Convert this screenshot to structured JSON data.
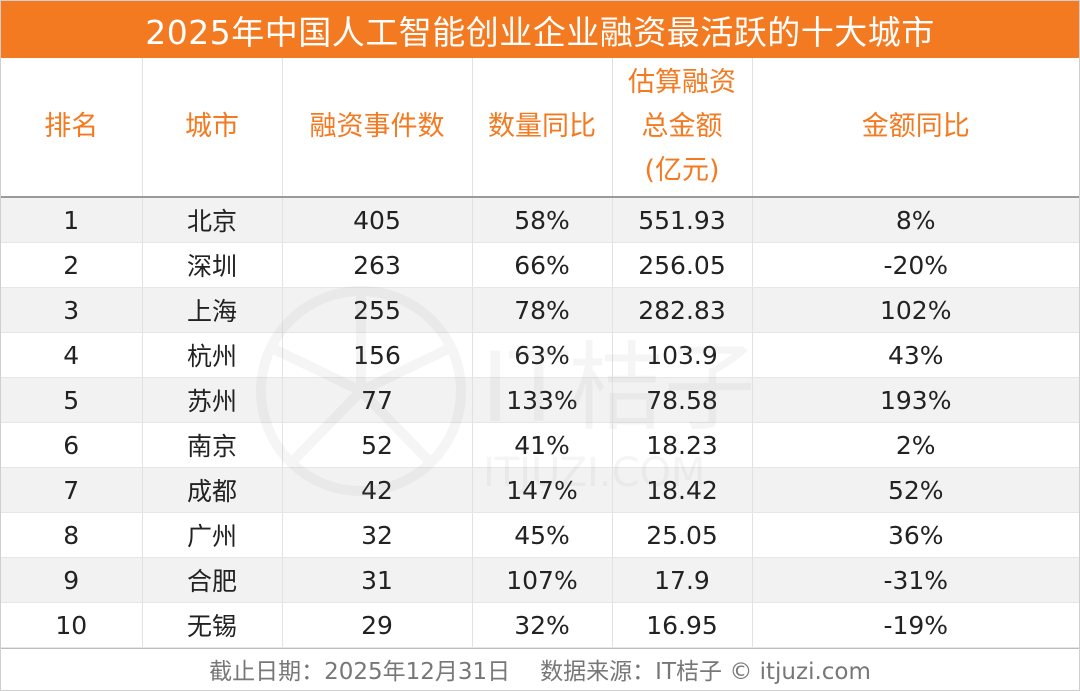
{
  "title": "2025年中国人工智能创业企业融资最活跃的十大城市",
  "headers": {
    "rank": "排名",
    "city": "城市",
    "events": "融资事件数",
    "count_yoy": "数量同比",
    "amount_line1": "估算融资",
    "amount_line2": "总金额",
    "amount_line3": "(亿元)",
    "amount_yoy": "金额同比"
  },
  "rows": [
    {
      "rank": "1",
      "city": "北京",
      "events": "405",
      "count_yoy": "58%",
      "amount": "551.93",
      "amount_yoy": "8%"
    },
    {
      "rank": "2",
      "city": "深圳",
      "events": "263",
      "count_yoy": "66%",
      "amount": "256.05",
      "amount_yoy": "-20%"
    },
    {
      "rank": "3",
      "city": "上海",
      "events": "255",
      "count_yoy": "78%",
      "amount": "282.83",
      "amount_yoy": "102%"
    },
    {
      "rank": "4",
      "city": "杭州",
      "events": "156",
      "count_yoy": "63%",
      "amount": "103.9",
      "amount_yoy": "43%"
    },
    {
      "rank": "5",
      "city": "苏州",
      "events": "77",
      "count_yoy": "133%",
      "amount": "78.58",
      "amount_yoy": "193%"
    },
    {
      "rank": "6",
      "city": "南京",
      "events": "52",
      "count_yoy": "41%",
      "amount": "18.23",
      "amount_yoy": "2%"
    },
    {
      "rank": "7",
      "city": "成都",
      "events": "42",
      "count_yoy": "147%",
      "amount": "18.42",
      "amount_yoy": "52%"
    },
    {
      "rank": "8",
      "city": "广州",
      "events": "32",
      "count_yoy": "45%",
      "amount": "25.05",
      "amount_yoy": "36%"
    },
    {
      "rank": "9",
      "city": "合肥",
      "events": "31",
      "count_yoy": "107%",
      "amount": "17.9",
      "amount_yoy": "-31%"
    },
    {
      "rank": "10",
      "city": "无锡",
      "events": "29",
      "count_yoy": "32%",
      "amount": "16.95",
      "amount_yoy": "-19%"
    }
  ],
  "footer": {
    "date": "截止日期：2025年12月31日",
    "source": "数据来源：IT桔子 © itjuzi.com"
  },
  "watermark": {
    "brand": "IT桔子",
    "domain": "ITJUZI.COM"
  },
  "colors": {
    "accent": "#f37a20",
    "row_shade": "#f2f2f2"
  }
}
